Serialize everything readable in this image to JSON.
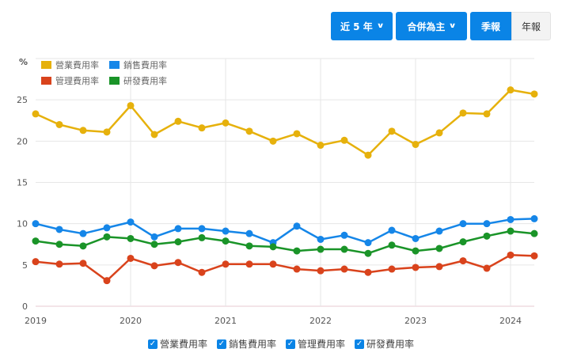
{
  "toolbar": {
    "range_label": "近 5 年",
    "consolidation_label": "合併為主",
    "quarterly_label": "季報",
    "annual_label": "年報",
    "chevron_icon": "chevron-down-icon",
    "active_period": "quarterly"
  },
  "legend": {
    "items": [
      {
        "label": "營業費用率",
        "color": "#e6b10c"
      },
      {
        "label": "銷售費用率",
        "color": "#1586e8"
      },
      {
        "label": "管理費用率",
        "color": "#d9431c"
      },
      {
        "label": "研發費用率",
        "color": "#1a9428"
      }
    ]
  },
  "bottom_legend": {
    "items": [
      {
        "label": "營業費用率",
        "checked": true
      },
      {
        "label": "銷售費用率",
        "checked": true
      },
      {
        "label": "管理費用率",
        "checked": true
      },
      {
        "label": "研發費用率",
        "checked": true
      }
    ]
  },
  "chart_data": {
    "type": "line",
    "title": "",
    "xlabel": "",
    "ylabel": "%",
    "ylim": [
      0,
      30
    ],
    "yticks": [
      0,
      5,
      10,
      15,
      20,
      25
    ],
    "xticks": [
      "2019",
      "2020",
      "2021",
      "2022",
      "2023",
      "2024"
    ],
    "grid": true,
    "legend_position": "top-left",
    "x": [
      "2019Q1",
      "2019Q2",
      "2019Q3",
      "2019Q4",
      "2020Q1",
      "2020Q2",
      "2020Q3",
      "2020Q4",
      "2021Q1",
      "2021Q2",
      "2021Q3",
      "2021Q4",
      "2022Q1",
      "2022Q2",
      "2022Q3",
      "2022Q4",
      "2023Q1",
      "2023Q2",
      "2023Q3",
      "2023Q4",
      "2024Q1",
      "2024Q2"
    ],
    "series": [
      {
        "name": "營業費用率",
        "color": "#e6b10c",
        "values": [
          23.3,
          22.0,
          21.3,
          21.1,
          24.3,
          20.8,
          22.4,
          21.6,
          22.2,
          21.2,
          20.0,
          20.9,
          19.5,
          20.1,
          18.3,
          21.2,
          19.6,
          21.0,
          23.4,
          23.3,
          26.2,
          25.7
        ]
      },
      {
        "name": "銷售費用率",
        "color": "#1586e8",
        "values": [
          10.0,
          9.3,
          8.8,
          9.5,
          10.2,
          8.4,
          9.4,
          9.4,
          9.1,
          8.8,
          7.7,
          9.7,
          8.1,
          8.6,
          7.7,
          9.2,
          8.2,
          9.1,
          10.0,
          10.0,
          10.5,
          10.6
        ]
      },
      {
        "name": "管理費用率",
        "color": "#d9431c",
        "values": [
          5.4,
          5.1,
          5.2,
          3.1,
          5.8,
          4.9,
          5.3,
          4.1,
          5.1,
          5.1,
          5.1,
          4.5,
          4.3,
          4.5,
          4.1,
          4.5,
          4.7,
          4.8,
          5.5,
          4.6,
          6.2,
          6.1
        ]
      },
      {
        "name": "研發費用率",
        "color": "#1a9428",
        "values": [
          7.9,
          7.5,
          7.3,
          8.4,
          8.2,
          7.5,
          7.8,
          8.3,
          7.9,
          7.3,
          7.2,
          6.7,
          6.9,
          6.9,
          6.4,
          7.4,
          6.7,
          7.0,
          7.8,
          8.5,
          9.1,
          8.8
        ]
      }
    ]
  }
}
